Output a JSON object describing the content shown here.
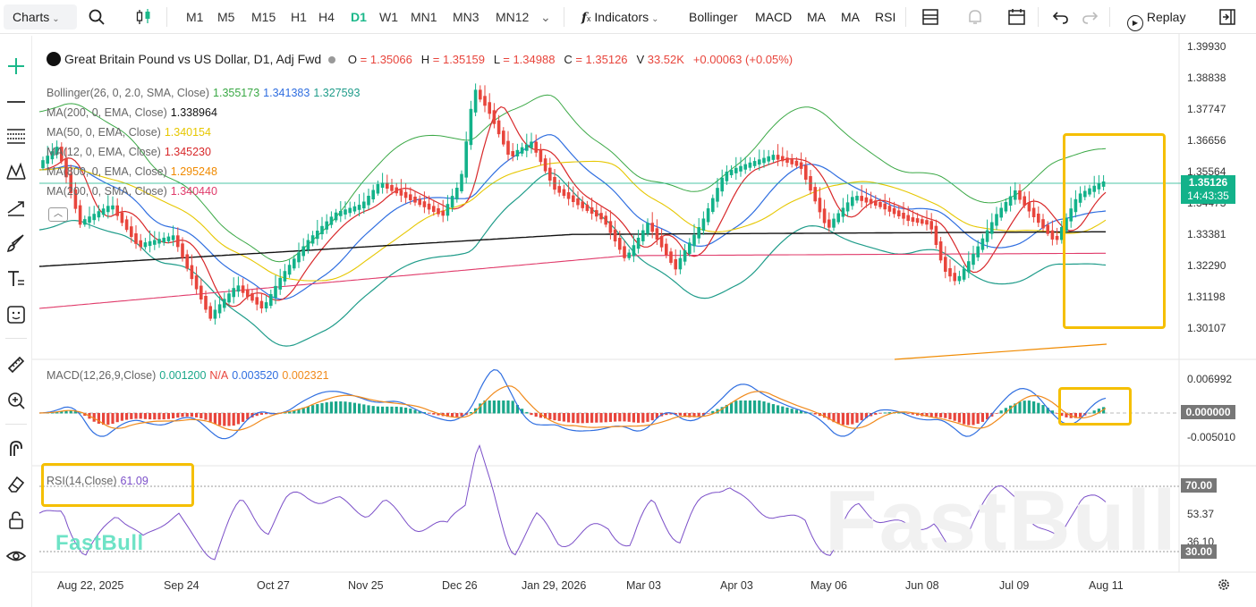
{
  "toolbar": {
    "charts_label": "Charts",
    "timeframes": [
      "M1",
      "M5",
      "M15",
      "H1",
      "H4",
      "D1",
      "W1",
      "MN1",
      "MN3",
      "MN12"
    ],
    "active_timeframe": "D1",
    "indicators_label": "Indicators",
    "indicator_shortcuts": [
      "Bollinger",
      "MACD",
      "MA",
      "MA",
      "RSI"
    ],
    "replay_label": "Replay"
  },
  "symbol": {
    "title": "Great Britain Pound vs US Dollar, D1, Adj Fwd",
    "open_label": "O",
    "open": "= 1.35066",
    "high_label": "H",
    "high": "= 1.35159",
    "low_label": "L",
    "low": "= 1.34988",
    "close_label": "C",
    "close": "= 1.35126",
    "volume_label": "V",
    "volume": "33.52K",
    "change": "+0.00063 (+0.05%)"
  },
  "legend": [
    {
      "label": "Bollinger(26, 0, 2.0, SMA, Close)",
      "values": [
        "1.355173",
        "1.341383",
        "1.327593"
      ],
      "colors": [
        "#3aa845",
        "#2f6ee0",
        "#1f9c8a"
      ]
    },
    {
      "label": "MA(200, 0, EMA, Close)",
      "values": [
        "1.338964"
      ],
      "colors": [
        "#111111"
      ]
    },
    {
      "label": "MA(50, 0, EMA, Close)",
      "values": [
        "1.340154"
      ],
      "colors": [
        "#e6c700"
      ]
    },
    {
      "label": "MA(12, 0, EMA, Close)",
      "values": [
        "1.345230"
      ],
      "colors": [
        "#d8282a"
      ]
    },
    {
      "label": "MA(800, 0, EMA, Close)",
      "values": [
        "1.295248"
      ],
      "colors": [
        "#f08a00"
      ]
    },
    {
      "label": "MA(200, 0, SMA, Close)",
      "values": [
        "1.340440"
      ],
      "colors": [
        "#e03a6a"
      ]
    }
  ],
  "price_axis": [
    "1.39930",
    "1.38838",
    "1.37747",
    "1.36656",
    "1.35564",
    "1.34473",
    "1.33381",
    "1.32290",
    "1.31198",
    "1.30107"
  ],
  "current_price": {
    "price": "1.35126",
    "countdown": "14:43:35",
    "color": "#13b28a"
  },
  "macd": {
    "label": "MACD(12,26,9,Close)",
    "values": [
      "0.001200",
      "N/A",
      "0.003520",
      "0.002321"
    ],
    "colors": [
      "#1aa78a",
      "#e8453c",
      "#2f6ee0",
      "#f08a1c"
    ],
    "axis": [
      "0.006992",
      "-0.005010"
    ],
    "zero_tag": "0.000000"
  },
  "rsi": {
    "label": "RSI(14,Close)",
    "value": "61.09",
    "axis": [
      "53.37",
      "36.10"
    ],
    "upper_tag": "70.00",
    "lower_tag": "30.00"
  },
  "time_axis": [
    "Aug 22, 2025",
    "Sep 24",
    "Oct 27",
    "Nov 25",
    "Dec 26",
    "Jan 29, 2026",
    "Mar 03",
    "Apr 03",
    "May 06",
    "Jun 08",
    "Jul 09",
    "Aug 11"
  ],
  "watermark": "FastBull",
  "colors": {
    "accent": "#1bb88a",
    "up": "#13b28a",
    "down": "#e8453c",
    "highlight": "#f5bf00"
  },
  "icons": {
    "left": [
      "crosshair-icon",
      "horizontal-line-icon",
      "fib-lines-icon",
      "pattern-icon",
      "trend-icon",
      "brush-icon",
      "text-icon",
      "emoji-icon",
      "ruler-icon",
      "zoom-in-icon",
      "magnet-icon",
      "eraser-icon",
      "lock-icon",
      "eye-icon"
    ]
  }
}
